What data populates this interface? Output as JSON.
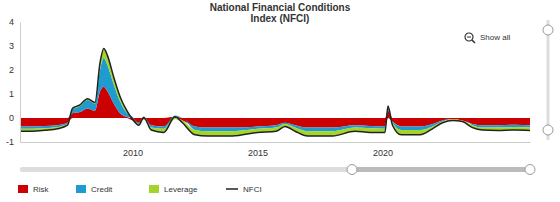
{
  "chart_data": {
    "type": "area",
    "title": "National Financial Conditions\nIndex (NFCI)",
    "annotations": [
      "Show all"
    ],
    "stacked": true,
    "grid": false,
    "legend": "bottom",
    "x": [
      2005.5,
      2006.0,
      2006.5,
      2007.0,
      2007.4,
      2007.6,
      2007.9,
      2008.2,
      2008.5,
      2008.7,
      2008.85,
      2009.0,
      2009.25,
      2009.5,
      2009.75,
      2010.0,
      2010.25,
      2010.45,
      2010.75,
      2011.25,
      2011.7,
      2012.0,
      2012.5,
      2013.0,
      2014.0,
      2015.0,
      2015.75,
      2016.1,
      2016.5,
      2017.0,
      2018.0,
      2018.9,
      2019.5,
      2020.1,
      2020.22,
      2020.4,
      2020.75,
      2021.5,
      2022.0,
      2022.4,
      2022.8,
      2023.2,
      2023.6,
      2024.0,
      2024.6,
      2025.3,
      2025.9
    ],
    "xlim": [
      2005.5,
      2025.9
    ],
    "xticks": [
      2010,
      2015,
      2020
    ],
    "ylim": [
      -1,
      4
    ],
    "yticks": [
      -1,
      0,
      1,
      2,
      3,
      4
    ],
    "series": [
      {
        "name": "Risk",
        "type": "area",
        "color": "#cc0000",
        "values": [
          -0.35,
          -0.35,
          -0.33,
          -0.3,
          -0.2,
          0.2,
          0.25,
          0.4,
          0.3,
          1.1,
          1.3,
          1.1,
          0.6,
          0.2,
          0.05,
          -0.1,
          -0.2,
          -0.05,
          -0.3,
          -0.35,
          0.05,
          -0.1,
          -0.35,
          -0.4,
          -0.4,
          -0.35,
          -0.3,
          -0.2,
          -0.3,
          -0.4,
          -0.4,
          -0.3,
          -0.33,
          -0.35,
          0.3,
          -0.15,
          -0.35,
          -0.35,
          -0.25,
          -0.1,
          -0.05,
          -0.1,
          -0.25,
          -0.3,
          -0.3,
          -0.28,
          -0.3
        ]
      },
      {
        "name": "Credit",
        "type": "area",
        "color": "#1f9bcf",
        "values": [
          -0.1,
          -0.1,
          -0.1,
          -0.08,
          -0.05,
          0.15,
          0.25,
          0.35,
          0.3,
          0.9,
          1.2,
          1.1,
          0.8,
          0.5,
          0.2,
          0.05,
          -0.05,
          0.05,
          -0.1,
          -0.1,
          0.05,
          0,
          -0.15,
          -0.15,
          -0.15,
          -0.1,
          -0.1,
          -0.05,
          -0.1,
          -0.15,
          -0.15,
          -0.1,
          -0.1,
          -0.1,
          0.15,
          -0.05,
          -0.15,
          -0.15,
          -0.1,
          -0.05,
          0,
          0,
          -0.05,
          -0.1,
          -0.1,
          -0.1,
          -0.1
        ]
      },
      {
        "name": "Leverage",
        "type": "area",
        "color": "#a4d42b",
        "values": [
          -0.1,
          -0.1,
          -0.08,
          -0.07,
          -0.05,
          0.05,
          0.05,
          0.05,
          0.05,
          0.3,
          0.4,
          0.4,
          0.3,
          0.2,
          0.1,
          0,
          -0.05,
          0.02,
          -0.1,
          -0.15,
          -0.05,
          -0.1,
          -0.2,
          -0.2,
          -0.2,
          -0.15,
          -0.15,
          -0.1,
          -0.15,
          -0.2,
          -0.2,
          -0.15,
          -0.17,
          -0.15,
          0.05,
          -0.1,
          -0.2,
          -0.2,
          -0.1,
          -0.05,
          -0.05,
          -0.05,
          -0.1,
          -0.1,
          -0.12,
          -0.12,
          -0.12
        ]
      },
      {
        "name": "NFCI",
        "type": "line",
        "color": "#222222",
        "values": [
          -0.55,
          -0.55,
          -0.51,
          -0.45,
          -0.3,
          0.4,
          0.55,
          0.8,
          0.65,
          2.3,
          2.9,
          2.6,
          1.7,
          0.9,
          0.35,
          -0.05,
          -0.3,
          0.02,
          -0.5,
          -0.6,
          0.05,
          -0.2,
          -0.7,
          -0.75,
          -0.75,
          -0.6,
          -0.55,
          -0.35,
          -0.55,
          -0.75,
          -0.75,
          -0.55,
          -0.6,
          -0.6,
          0.5,
          -0.3,
          -0.7,
          -0.7,
          -0.45,
          -0.2,
          -0.1,
          -0.15,
          -0.4,
          -0.5,
          -0.52,
          -0.5,
          -0.52
        ]
      }
    ]
  }
}
